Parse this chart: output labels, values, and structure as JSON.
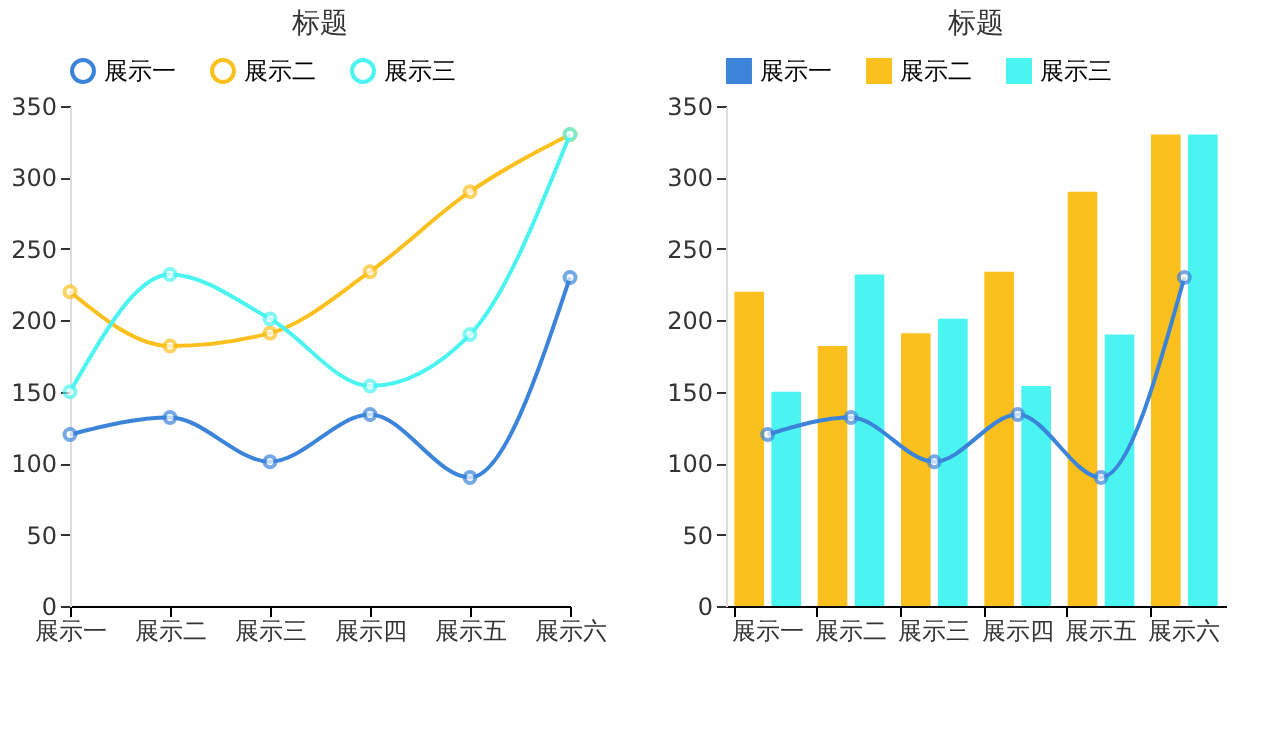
{
  "chart_data": [
    {
      "type": "line",
      "title": "标题",
      "categories": [
        "展示一",
        "展示二",
        "展示三",
        "展示四",
        "展示五",
        "展示六"
      ],
      "series": [
        {
          "name": "展示一",
          "color": "#3b84d9",
          "values": [
            120,
            132,
            101,
            134,
            90,
            230
          ]
        },
        {
          "name": "展示二",
          "color": "#fcc01e",
          "values": [
            220,
            182,
            191,
            234,
            290,
            330
          ]
        },
        {
          "name": "展示三",
          "color": "#4bf4f0",
          "values": [
            150,
            232,
            201,
            154,
            190,
            330
          ]
        }
      ],
      "ylim": [
        0,
        350
      ],
      "yticks": [
        0,
        50,
        100,
        150,
        200,
        250,
        300,
        350
      ],
      "grid": false,
      "legend": "top left",
      "marker": "circle",
      "line_style": "solid"
    },
    {
      "type": "bar",
      "title": "标题",
      "categories": [
        "展示一",
        "展示二",
        "展示三",
        "展示四",
        "展示五",
        "展示六"
      ],
      "series": [
        {
          "name": "展示一",
          "type": "line",
          "color": "#3b84d9",
          "values": [
            120,
            132,
            101,
            134,
            90,
            230
          ]
        },
        {
          "name": "展示二",
          "color": "#fcc01e",
          "values": [
            220,
            182,
            191,
            234,
            290,
            330
          ]
        },
        {
          "name": "展示三",
          "color": "#4bf4f0",
          "values": [
            150,
            232,
            201,
            154,
            190,
            330
          ]
        }
      ],
      "ylim": [
        0,
        350
      ],
      "yticks": [
        0,
        50,
        100,
        150,
        200,
        250,
        300,
        350
      ],
      "grid": false,
      "legend": "top left",
      "marker": "circle",
      "line_style": "solid"
    }
  ]
}
